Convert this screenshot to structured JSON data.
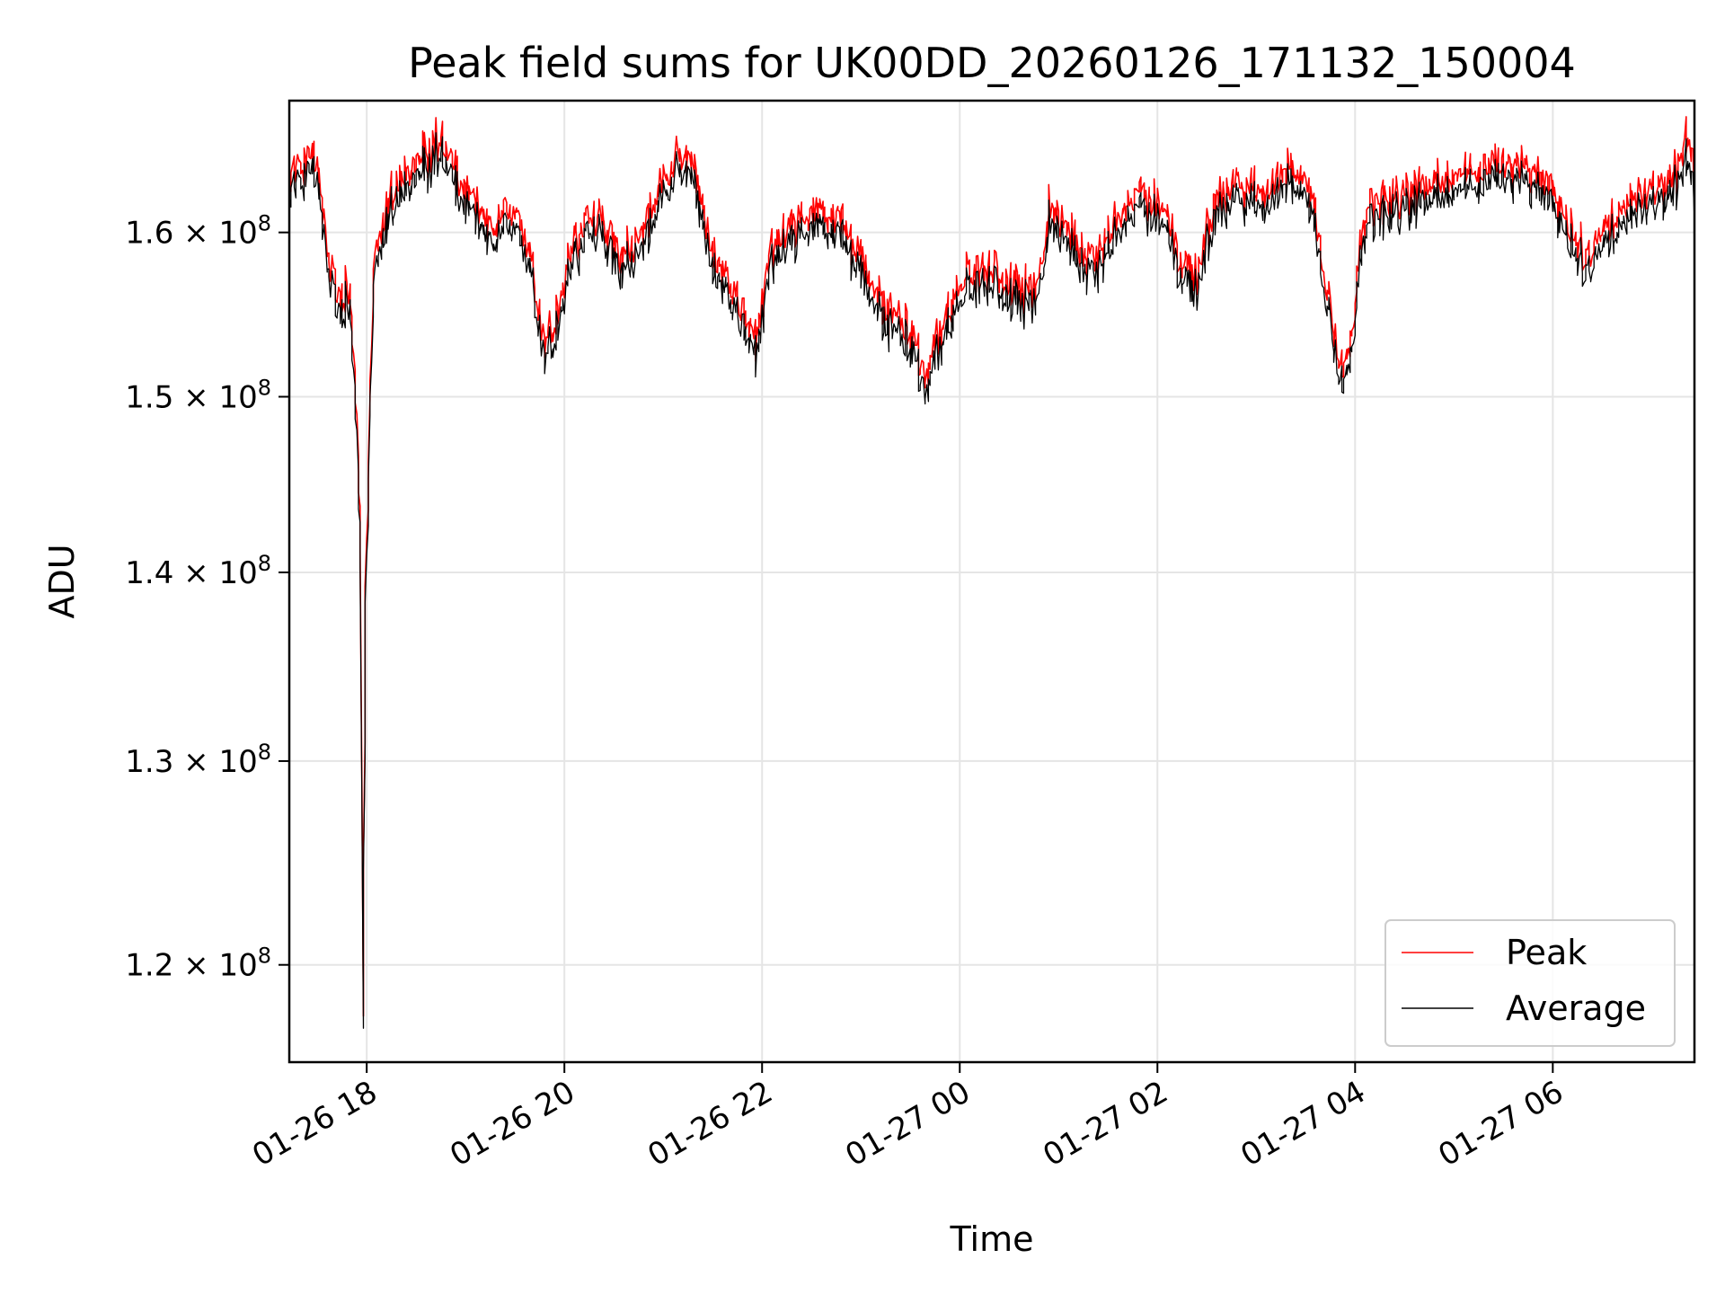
{
  "chart_data": {
    "type": "line",
    "title": "Peak field sums for UK00DD_20260126_171132_150004",
    "xlabel": "Time",
    "ylabel": "ADU",
    "y_scale": "log",
    "x_range": [
      "2026-01-26 17:13",
      "2026-01-27 07:26"
    ],
    "ylim": [
      115500000,
      168500000
    ],
    "grid": true,
    "legend_position": "lower-right",
    "x_ticks": [
      {
        "value": "2026-01-26 18:00",
        "label": "01-26 18"
      },
      {
        "value": "2026-01-26 20:00",
        "label": "01-26 20"
      },
      {
        "value": "2026-01-26 22:00",
        "label": "01-26 22"
      },
      {
        "value": "2026-01-27 00:00",
        "label": "01-27 00"
      },
      {
        "value": "2026-01-27 02:00",
        "label": "01-27 02"
      },
      {
        "value": "2026-01-27 04:00",
        "label": "01-27 04"
      },
      {
        "value": "2026-01-27 06:00",
        "label": "01-27 06"
      }
    ],
    "y_ticks": [
      {
        "value": 120000000,
        "mantissa": "1.2",
        "exponent": "8"
      },
      {
        "value": 130000000,
        "mantissa": "1.3",
        "exponent": "8"
      },
      {
        "value": 140000000,
        "mantissa": "1.4",
        "exponent": "8"
      },
      {
        "value": 150000000,
        "mantissa": "1.5",
        "exponent": "8"
      },
      {
        "value": 160000000,
        "mantissa": "1.6",
        "exponent": "8"
      }
    ],
    "series": [
      {
        "name": "Peak",
        "color": "#ff0000",
        "points": [
          [
            "2026-01-26 17:13",
            163000000
          ],
          [
            "2026-01-26 17:20",
            164000000
          ],
          [
            "2026-01-26 17:30",
            164500000
          ],
          [
            "2026-01-26 17:37",
            158000000
          ],
          [
            "2026-01-26 17:43",
            155000000
          ],
          [
            "2026-01-26 17:50",
            156500000
          ],
          [
            "2026-01-26 17:54",
            150000000
          ],
          [
            "2026-01-26 17:57",
            140000000
          ],
          [
            "2026-01-26 17:58",
            116000000
          ],
          [
            "2026-01-26 18:00",
            140000000
          ],
          [
            "2026-01-26 18:05",
            158000000
          ],
          [
            "2026-01-26 18:15",
            162000000
          ],
          [
            "2026-01-26 18:30",
            164000000
          ],
          [
            "2026-01-26 18:45",
            165500000
          ],
          [
            "2026-01-26 19:00",
            162000000
          ],
          [
            "2026-01-26 19:15",
            160000000
          ],
          [
            "2026-01-26 19:30",
            161000000
          ],
          [
            "2026-01-26 19:40",
            158000000
          ],
          [
            "2026-01-26 19:48",
            153000000
          ],
          [
            "2026-01-26 19:55",
            154000000
          ],
          [
            "2026-01-26 20:05",
            159000000
          ],
          [
            "2026-01-26 20:20",
            160500000
          ],
          [
            "2026-01-26 20:35",
            158000000
          ],
          [
            "2026-01-26 20:50",
            160000000
          ],
          [
            "2026-01-26 21:00",
            163000000
          ],
          [
            "2026-01-26 21:10",
            164500000
          ],
          [
            "2026-01-26 21:20",
            163500000
          ],
          [
            "2026-01-26 21:30",
            158500000
          ],
          [
            "2026-01-26 21:40",
            157000000
          ],
          [
            "2026-01-26 21:50",
            154000000
          ],
          [
            "2026-01-26 21:57",
            153000000
          ],
          [
            "2026-01-26 22:05",
            158500000
          ],
          [
            "2026-01-26 22:20",
            160000000
          ],
          [
            "2026-01-26 22:35",
            161000000
          ],
          [
            "2026-01-26 22:50",
            160000000
          ],
          [
            "2026-01-26 23:00",
            158000000
          ],
          [
            "2026-01-26 23:15",
            155000000
          ],
          [
            "2026-01-26 23:30",
            153500000
          ],
          [
            "2026-01-26 23:40",
            151000000
          ],
          [
            "2026-01-26 23:50",
            154000000
          ],
          [
            "2026-01-27 00:00",
            156500000
          ],
          [
            "2026-01-27 00:15",
            157500000
          ],
          [
            "2026-01-27 00:30",
            156500000
          ],
          [
            "2026-01-27 00:45",
            156000000
          ],
          [
            "2026-01-27 00:50",
            157000000
          ],
          [
            "2026-01-27 00:55",
            161000000
          ],
          [
            "2026-01-27 01:05",
            160000000
          ],
          [
            "2026-01-27 01:20",
            157500000
          ],
          [
            "2026-01-27 01:35",
            160000000
          ],
          [
            "2026-01-27 01:50",
            162000000
          ],
          [
            "2026-01-27 02:05",
            161000000
          ],
          [
            "2026-01-27 02:15",
            158000000
          ],
          [
            "2026-01-27 02:25",
            157000000
          ],
          [
            "2026-01-27 02:35",
            161500000
          ],
          [
            "2026-01-27 02:50",
            162500000
          ],
          [
            "2026-01-27 03:05",
            162000000
          ],
          [
            "2026-01-27 03:20",
            163500000
          ],
          [
            "2026-01-27 03:35",
            162000000
          ],
          [
            "2026-01-27 03:42",
            157000000
          ],
          [
            "2026-01-27 03:50",
            152000000
          ],
          [
            "2026-01-27 03:55",
            151000000
          ],
          [
            "2026-01-27 04:00",
            155000000
          ],
          [
            "2026-01-27 04:05",
            160000000
          ],
          [
            "2026-01-27 04:15",
            161500000
          ],
          [
            "2026-01-27 04:30",
            162000000
          ],
          [
            "2026-01-27 04:45",
            162500000
          ],
          [
            "2026-01-27 05:00",
            163000000
          ],
          [
            "2026-01-27 05:15",
            163500000
          ],
          [
            "2026-01-27 05:30",
            164000000
          ],
          [
            "2026-01-27 05:45",
            163500000
          ],
          [
            "2026-01-27 06:00",
            162500000
          ],
          [
            "2026-01-27 06:10",
            160000000
          ],
          [
            "2026-01-27 06:20",
            158000000
          ],
          [
            "2026-01-27 06:35",
            160000000
          ],
          [
            "2026-01-27 06:50",
            161500000
          ],
          [
            "2026-01-27 07:05",
            162500000
          ],
          [
            "2026-01-27 07:15",
            163500000
          ],
          [
            "2026-01-27 07:22",
            166000000
          ],
          [
            "2026-01-27 07:26",
            163000000
          ]
        ]
      },
      {
        "name": "Average",
        "color": "#000000",
        "points": [
          [
            "2026-01-26 17:13",
            162500000
          ],
          [
            "2026-01-26 17:20",
            163500000
          ],
          [
            "2026-01-26 17:30",
            164000000
          ],
          [
            "2026-01-26 17:37",
            157500000
          ],
          [
            "2026-01-26 17:43",
            154500000
          ],
          [
            "2026-01-26 17:50",
            156000000
          ],
          [
            "2026-01-26 17:54",
            149500000
          ],
          [
            "2026-01-26 17:57",
            139500000
          ],
          [
            "2026-01-26 17:58",
            115800000
          ],
          [
            "2026-01-26 18:00",
            139500000
          ],
          [
            "2026-01-26 18:05",
            157500000
          ],
          [
            "2026-01-26 18:15",
            161500000
          ],
          [
            "2026-01-26 18:30",
            163500000
          ],
          [
            "2026-01-26 18:45",
            165000000
          ],
          [
            "2026-01-26 19:00",
            161500000
          ],
          [
            "2026-01-26 19:15",
            159500000
          ],
          [
            "2026-01-26 19:30",
            160500000
          ],
          [
            "2026-01-26 19:40",
            157500000
          ],
          [
            "2026-01-26 19:48",
            152500000
          ],
          [
            "2026-01-26 19:55",
            153500000
          ],
          [
            "2026-01-26 20:05",
            158500000
          ],
          [
            "2026-01-26 20:20",
            160000000
          ],
          [
            "2026-01-26 20:35",
            157500000
          ],
          [
            "2026-01-26 20:50",
            159500000
          ],
          [
            "2026-01-26 21:00",
            162500000
          ],
          [
            "2026-01-26 21:10",
            164000000
          ],
          [
            "2026-01-26 21:20",
            163000000
          ],
          [
            "2026-01-26 21:30",
            158000000
          ],
          [
            "2026-01-26 21:40",
            156500000
          ],
          [
            "2026-01-26 21:50",
            153500000
          ],
          [
            "2026-01-26 21:57",
            152500000
          ],
          [
            "2026-01-26 22:05",
            158000000
          ],
          [
            "2026-01-26 22:20",
            159500000
          ],
          [
            "2026-01-26 22:35",
            160500000
          ],
          [
            "2026-01-26 22:50",
            159500000
          ],
          [
            "2026-01-26 23:00",
            157500000
          ],
          [
            "2026-01-26 23:15",
            154500000
          ],
          [
            "2026-01-26 23:30",
            153000000
          ],
          [
            "2026-01-26 23:40",
            150500000
          ],
          [
            "2026-01-26 23:50",
            153500000
          ],
          [
            "2026-01-27 00:00",
            156000000
          ],
          [
            "2026-01-27 00:15",
            157000000
          ],
          [
            "2026-01-27 00:30",
            156000000
          ],
          [
            "2026-01-27 00:45",
            155500000
          ],
          [
            "2026-01-27 00:50",
            156500000
          ],
          [
            "2026-01-27 00:55",
            160500000
          ],
          [
            "2026-01-27 01:05",
            159500000
          ],
          [
            "2026-01-27 01:20",
            157000000
          ],
          [
            "2026-01-27 01:35",
            159500000
          ],
          [
            "2026-01-27 01:50",
            161500000
          ],
          [
            "2026-01-27 02:05",
            160500000
          ],
          [
            "2026-01-27 02:15",
            157500000
          ],
          [
            "2026-01-27 02:25",
            156500000
          ],
          [
            "2026-01-27 02:35",
            161000000
          ],
          [
            "2026-01-27 02:50",
            162000000
          ],
          [
            "2026-01-27 03:05",
            161500000
          ],
          [
            "2026-01-27 03:20",
            163000000
          ],
          [
            "2026-01-27 03:35",
            161500000
          ],
          [
            "2026-01-27 03:42",
            156500000
          ],
          [
            "2026-01-27 03:50",
            151500000
          ],
          [
            "2026-01-27 03:55",
            150500000
          ],
          [
            "2026-01-27 04:00",
            154500000
          ],
          [
            "2026-01-27 04:05",
            159500000
          ],
          [
            "2026-01-27 04:15",
            161000000
          ],
          [
            "2026-01-27 04:30",
            161500000
          ],
          [
            "2026-01-27 04:45",
            162000000
          ],
          [
            "2026-01-27 05:00",
            162500000
          ],
          [
            "2026-01-27 05:15",
            163000000
          ],
          [
            "2026-01-27 05:30",
            163500000
          ],
          [
            "2026-01-27 05:45",
            163000000
          ],
          [
            "2026-01-27 06:00",
            162000000
          ],
          [
            "2026-01-27 06:10",
            159500000
          ],
          [
            "2026-01-27 06:20",
            157500000
          ],
          [
            "2026-01-27 06:35",
            159500000
          ],
          [
            "2026-01-27 06:50",
            161000000
          ],
          [
            "2026-01-27 07:05",
            162000000
          ],
          [
            "2026-01-27 07:15",
            163000000
          ],
          [
            "2026-01-27 07:22",
            165000000
          ],
          [
            "2026-01-27 07:26",
            162000000
          ]
        ]
      }
    ]
  }
}
